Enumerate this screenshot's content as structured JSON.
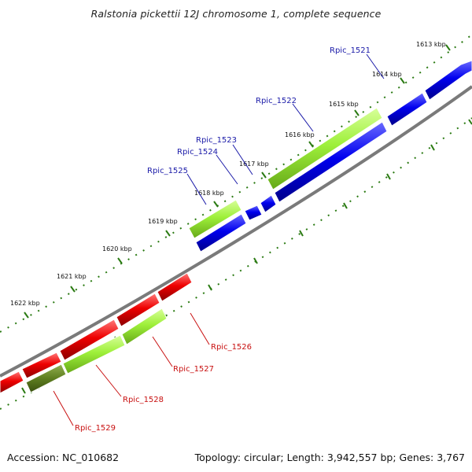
{
  "title": "Ralstonia pickettii 12J chromosome 1, complete sequence",
  "footer": {
    "accession": "Accession: NC_010682",
    "summary": "Topology: circular; Length: 3,942,557 bp; Genes: 3,767"
  },
  "colors": {
    "forward_cds": "#0000ee",
    "reverse_cds": "#ee0000",
    "rna": "#9ef03a",
    "rna_dark": "#5e7e20",
    "backbone": "#7a7a7a",
    "ticks": "#2a7a12",
    "forward_label": "#1a1aa8",
    "reverse_label": "#c81010"
  },
  "scale_labels": [
    "1613 kbp",
    "1614 kbp",
    "1615 kbp",
    "1616 kbp",
    "1617 kbp",
    "1618 kbp",
    "1619 kbp",
    "1620 kbp",
    "1621 kbp",
    "1622 kbp"
  ],
  "forward_genes": [
    "Rpic_1521",
    "Rpic_1522",
    "Rpic_1523",
    "Rpic_1524",
    "Rpic_1525"
  ],
  "reverse_genes": [
    "Rpic_1526",
    "Rpic_1527",
    "Rpic_1528",
    "Rpic_1529"
  ]
}
